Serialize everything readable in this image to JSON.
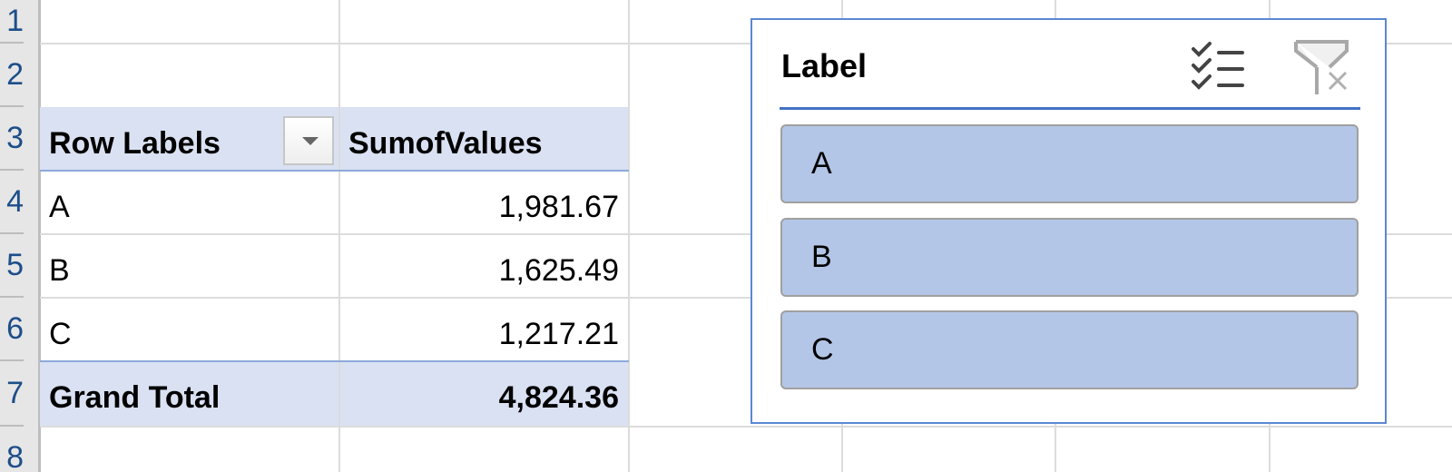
{
  "row_headers": [
    "1",
    "2",
    "3",
    "4",
    "5",
    "6",
    "7",
    "8"
  ],
  "pivot": {
    "header": {
      "row_labels": "Row Labels",
      "values": "SumofValues"
    },
    "rows": [
      {
        "label": "A",
        "value": "1,981.67"
      },
      {
        "label": "B",
        "value": "1,625.49"
      },
      {
        "label": "C",
        "value": "1,217.21"
      }
    ],
    "total": {
      "label": "Grand Total",
      "value": "4,824.36"
    }
  },
  "slicer": {
    "title": "Label",
    "items": [
      "A",
      "B",
      "C"
    ],
    "icons": [
      "multi-select-icon",
      "clear-filter-icon"
    ],
    "item_color": "#b4c6e7"
  }
}
